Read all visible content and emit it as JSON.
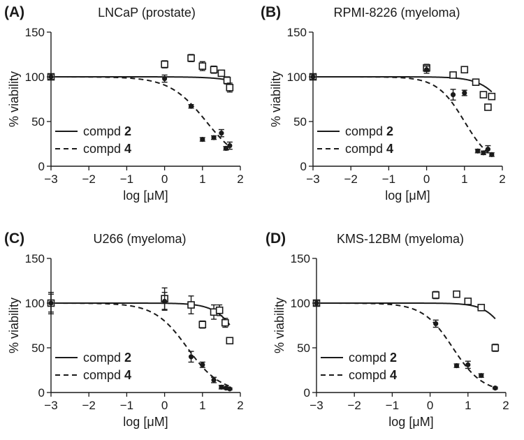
{
  "chart_data": [
    {
      "type": "scatter",
      "panel_label": "(A)",
      "title": "LNCaP (prostate)",
      "xlabel": "log [μM]",
      "ylabel": "% viability",
      "xlim": [
        -3,
        2
      ],
      "ylim": [
        0,
        150
      ],
      "x_ticks": [
        "−3",
        "−2",
        "−1",
        "0",
        "1",
        "2"
      ],
      "y_ticks": [
        "0",
        "50",
        "100",
        "150"
      ],
      "legend": [
        {
          "line": "solid",
          "label": "compd ",
          "bold": "2"
        },
        {
          "line": "dashed",
          "label": "compd ",
          "bold": "4"
        }
      ],
      "series": [
        {
          "name": "compd 2",
          "marker": "open-square",
          "fit_ic50_log": 3.1,
          "fit_hill": 1.0,
          "x": [
            -3,
            0,
            0.7,
            1.0,
            1.3,
            1.5,
            1.65,
            1.72
          ],
          "y": [
            100,
            114,
            121,
            112,
            108,
            104,
            96,
            88
          ],
          "err": [
            3,
            4,
            4,
            5,
            4,
            3,
            4,
            5
          ]
        },
        {
          "name": "compd 4",
          "marker": "filled-circle",
          "fit_ic50_log": 1.1,
          "fit_hill": 0.9,
          "x": [
            -3,
            0,
            0.7,
            1.0,
            1.3,
            1.5,
            1.62,
            1.72
          ],
          "y": [
            100,
            98,
            67,
            30,
            32,
            37,
            20,
            23
          ],
          "err": [
            3,
            4,
            2,
            2,
            2,
            4,
            2,
            4
          ]
        }
      ]
    },
    {
      "type": "scatter",
      "panel_label": "(B)",
      "title": "RPMI-8226 (myeloma)",
      "xlabel": "log [μM]",
      "ylabel": "% viability",
      "xlim": [
        -3,
        2
      ],
      "ylim": [
        0,
        150
      ],
      "x_ticks": [
        "−3",
        "−2",
        "−1",
        "0",
        "1",
        "2"
      ],
      "y_ticks": [
        "0",
        "50",
        "100",
        "150"
      ],
      "legend": [
        {
          "line": "solid",
          "label": "compd ",
          "bold": "2"
        },
        {
          "line": "dashed",
          "label": "compd ",
          "bold": "4"
        }
      ],
      "series": [
        {
          "name": "compd 2",
          "marker": "open-square",
          "fit_ic50_log": 2.3,
          "fit_hill": 1.2,
          "x": [
            -3,
            0,
            0.7,
            1.0,
            1.3,
            1.5,
            1.62,
            1.72
          ],
          "y": [
            100,
            110,
            102,
            108,
            94,
            80,
            66,
            78
          ],
          "err": [
            3,
            4,
            3,
            3,
            3,
            3,
            3,
            3
          ]
        },
        {
          "name": "compd 4",
          "marker": "filled-circle",
          "fit_ic50_log": 1.0,
          "fit_hill": 1.2,
          "x": [
            -3,
            0,
            0.7,
            1.0,
            1.35,
            1.5,
            1.62,
            1.72
          ],
          "y": [
            100,
            108,
            80,
            82,
            17,
            15,
            19,
            13
          ],
          "err": [
            3,
            4,
            6,
            3,
            2,
            2,
            4,
            2
          ]
        }
      ]
    },
    {
      "type": "scatter",
      "panel_label": "(C)",
      "title": "U266 (myeloma)",
      "xlabel": "log [μM]",
      "ylabel": "% viability",
      "xlim": [
        -3,
        2
      ],
      "ylim": [
        0,
        150
      ],
      "x_ticks": [
        "−3",
        "−2",
        "−1",
        "0",
        "1",
        "2"
      ],
      "y_ticks": [
        "0",
        "50",
        "100",
        "150"
      ],
      "legend": [
        {
          "line": "solid",
          "label": "compd ",
          "bold": "2"
        },
        {
          "line": "dashed",
          "label": "compd ",
          "bold": "4"
        }
      ],
      "series": [
        {
          "name": "compd 2",
          "marker": "open-square",
          "fit_ic50_log": 2.1,
          "fit_hill": 1.3,
          "x": [
            -3,
            0,
            0.7,
            1.0,
            1.3,
            1.45,
            1.6,
            1.72
          ],
          "y": [
            100,
            105,
            98,
            76,
            90,
            92,
            78,
            58
          ],
          "err": [
            10,
            12,
            10,
            4,
            8,
            6,
            5,
            3
          ]
        },
        {
          "name": "compd 4",
          "marker": "filled-circle",
          "fit_ic50_log": 0.6,
          "fit_hill": 1.0,
          "x": [
            -3,
            0,
            0.7,
            1.0,
            1.3,
            1.5,
            1.62,
            1.72
          ],
          "y": [
            100,
            102,
            40,
            31,
            14,
            6,
            5,
            4
          ],
          "err": [
            12,
            10,
            6,
            3,
            3,
            2,
            1,
            1
          ]
        }
      ]
    },
    {
      "type": "scatter",
      "panel_label": "(D)",
      "title": "KMS-12BM (myeloma)",
      "xlabel": "log [μM]",
      "ylabel": "% viability",
      "xlim": [
        -3,
        2
      ],
      "ylim": [
        0,
        150
      ],
      "x_ticks": [
        "−3",
        "−2",
        "−1",
        "0",
        "1",
        "2"
      ],
      "y_ticks": [
        "0",
        "50",
        "100",
        "150"
      ],
      "legend": [
        {
          "line": "solid",
          "label": "compd ",
          "bold": "2"
        },
        {
          "line": "dashed",
          "label": "compd ",
          "bold": "4"
        }
      ],
      "series": [
        {
          "name": "compd 2",
          "marker": "open-square",
          "fit_ic50_log": 2.2,
          "fit_hill": 1.4,
          "x": [
            -3,
            0.15,
            0.7,
            1.0,
            1.35,
            1.72
          ],
          "y": [
            100,
            109,
            110,
            102,
            95,
            50
          ],
          "err": [
            3,
            4,
            3,
            3,
            3,
            4
          ]
        },
        {
          "name": "compd 4",
          "marker": "filled-circle",
          "fit_ic50_log": 0.6,
          "fit_hill": 1.1,
          "x": [
            -3,
            0.15,
            0.7,
            1.0,
            1.35,
            1.72
          ],
          "y": [
            100,
            77,
            30,
            31,
            19,
            5
          ],
          "err": [
            3,
            4,
            2,
            4,
            2,
            1
          ]
        }
      ]
    }
  ]
}
